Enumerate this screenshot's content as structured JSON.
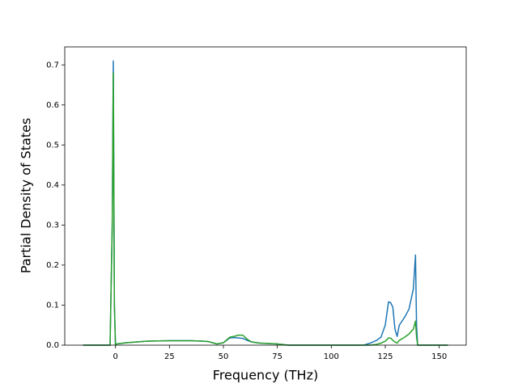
{
  "chart_data": {
    "type": "line",
    "xlabel": "Frequency (THz)",
    "ylabel": "Partial Density of States",
    "x": [
      -15,
      -2.5,
      -1.5,
      -1,
      -0.5,
      0,
      0.5,
      5,
      10,
      15,
      25,
      35,
      40,
      43,
      47,
      50,
      53,
      55,
      57,
      59,
      61,
      63,
      67,
      75,
      80,
      115,
      118,
      121,
      123,
      125,
      126.5,
      127.5,
      128.5,
      129.5,
      130.5,
      131.5,
      134,
      136,
      138,
      139,
      139.5,
      140,
      154
    ],
    "series": [
      {
        "color": "#1f77b4",
        "values": [
          0,
          0,
          0.3,
          0.71,
          0.1,
          0,
          0.003,
          0.006,
          0.008,
          0.01,
          0.011,
          0.011,
          0.01,
          0.009,
          0.003,
          0.006,
          0.018,
          0.019,
          0.018,
          0.017,
          0.012,
          0.008,
          0.005,
          0.003,
          0,
          0,
          0.005,
          0.012,
          0.02,
          0.05,
          0.108,
          0.106,
          0.095,
          0.04,
          0.022,
          0.05,
          0.07,
          0.09,
          0.14,
          0.225,
          0.05,
          0,
          0
        ]
      },
      {
        "color": "#2ca02c",
        "values": [
          0,
          0,
          0.3,
          0.68,
          0.1,
          0,
          0.003,
          0.006,
          0.008,
          0.01,
          0.011,
          0.011,
          0.01,
          0.009,
          0.003,
          0.006,
          0.02,
          0.022,
          0.025,
          0.025,
          0.015,
          0.008,
          0.005,
          0.003,
          0,
          0,
          0,
          0.002,
          0.005,
          0.01,
          0.018,
          0.018,
          0.012,
          0.008,
          0.005,
          0.012,
          0.02,
          0.028,
          0.04,
          0.06,
          0.02,
          0,
          0
        ]
      }
    ],
    "xlim": [
      -23.5,
      162.5
    ],
    "ylim": [
      0,
      0.745
    ],
    "xticks": [
      0,
      25,
      50,
      75,
      100,
      125,
      150
    ],
    "yticks": [
      {
        "value": 0,
        "label": "0.0"
      },
      0.1,
      0.2,
      0.3,
      0.4,
      0.5,
      0.6,
      0.7
    ]
  }
}
